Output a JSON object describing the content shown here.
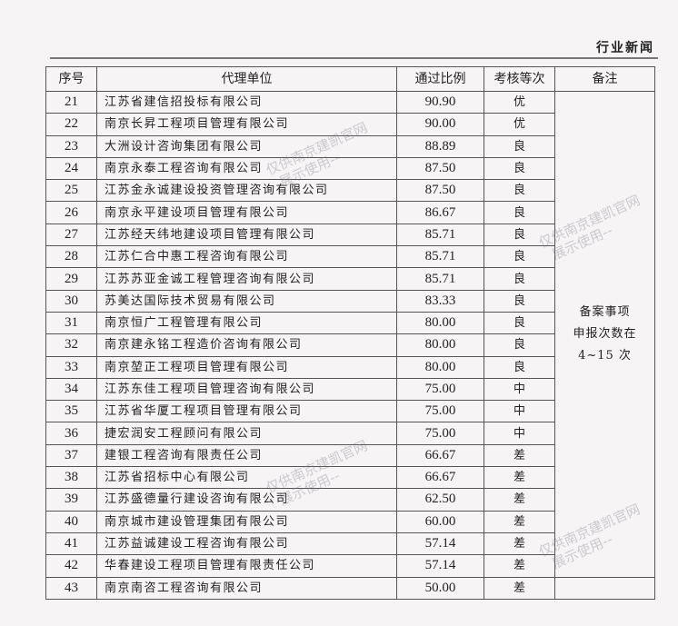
{
  "section_title": "行业新闻",
  "table": {
    "headers": [
      "序号",
      "代理单位",
      "通过比例",
      "考核等次",
      "备注"
    ],
    "rows": [
      {
        "no": "21",
        "name": "江苏省建信招投标有限公司",
        "ratio": "90.90",
        "grade": "优"
      },
      {
        "no": "22",
        "name": "南京长昇工程项目管理有限公司",
        "ratio": "90.00",
        "grade": "优"
      },
      {
        "no": "23",
        "name": "大洲设计咨询集团有限公司",
        "ratio": "88.89",
        "grade": "良"
      },
      {
        "no": "24",
        "name": "南京永泰工程咨询有限公司",
        "ratio": "87.50",
        "grade": "良"
      },
      {
        "no": "25",
        "name": "江苏金永诚建设投资管理咨询有限公司",
        "ratio": "87.50",
        "grade": "良"
      },
      {
        "no": "26",
        "name": "南京永平建设项目管理有限公司",
        "ratio": "86.67",
        "grade": "良"
      },
      {
        "no": "27",
        "name": "江苏经天纬地建设项目管理有限公司",
        "ratio": "85.71",
        "grade": "良"
      },
      {
        "no": "28",
        "name": "江苏仁合中惠工程咨询有限公司",
        "ratio": "85.71",
        "grade": "良"
      },
      {
        "no": "29",
        "name": "江苏苏亚金诚工程管理咨询有限公司",
        "ratio": "85.71",
        "grade": "良"
      },
      {
        "no": "30",
        "name": "苏美达国际技术贸易有限公司",
        "ratio": "83.33",
        "grade": "良"
      },
      {
        "no": "31",
        "name": "南京恒广工程管理有限公司",
        "ratio": "80.00",
        "grade": "良"
      },
      {
        "no": "32",
        "name": "南京建永铭工程造价咨询有限公司",
        "ratio": "80.00",
        "grade": "良"
      },
      {
        "no": "33",
        "name": "南京堃正工程项目管理有限公司",
        "ratio": "80.00",
        "grade": "良"
      },
      {
        "no": "34",
        "name": "江苏东佳工程项目管理咨询有限公司",
        "ratio": "75.00",
        "grade": "中"
      },
      {
        "no": "35",
        "name": "江苏省华厦工程项目管理有限公司",
        "ratio": "75.00",
        "grade": "中"
      },
      {
        "no": "36",
        "name": "捷宏润安工程顾问有限公司",
        "ratio": "75.00",
        "grade": "中"
      },
      {
        "no": "37",
        "name": "建银工程咨询有限责任公司",
        "ratio": "66.67",
        "grade": "差"
      },
      {
        "no": "38",
        "name": "江苏省招标中心有限公司",
        "ratio": "66.67",
        "grade": "差"
      },
      {
        "no": "39",
        "name": "江苏盛德量行建设咨询有限公司",
        "ratio": "62.50",
        "grade": "差"
      },
      {
        "no": "40",
        "name": "南京城市建设管理集团有限公司",
        "ratio": "60.00",
        "grade": "差"
      },
      {
        "no": "41",
        "name": "江苏益诚建设工程咨询有限公司",
        "ratio": "57.14",
        "grade": "差"
      },
      {
        "no": "42",
        "name": "华春建设工程项目管理有限责任公司",
        "ratio": "57.14",
        "grade": "差"
      },
      {
        "no": "43",
        "name": "南京南咨工程咨询有限公司",
        "ratio": "50.00",
        "grade": "差"
      }
    ],
    "remark": [
      "备案事项",
      "申报次数在",
      "4~15 次"
    ]
  },
  "watermark": [
    "仅供南京建凯官网",
    "展示使用--"
  ]
}
